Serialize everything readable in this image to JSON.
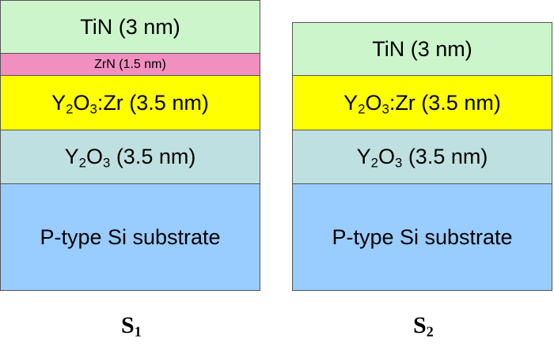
{
  "colors": {
    "tin": "#ccf5cc",
    "zrn": "#f08fc0",
    "y2o3_zr": "#ffff00",
    "y2o3": "#bfe0e0",
    "substrate": "#99ccff"
  },
  "s1": {
    "caption": {
      "letter": "S",
      "index": "1"
    },
    "layers": {
      "tin": "TiN (3 nm)",
      "zrn": "ZrN (1.5 nm)",
      "y2o3_zr": {
        "y": "Y",
        "n1": "2",
        "o": "O",
        "n2": "3",
        "rest": ":Zr (3.5 nm)"
      },
      "y2o3": {
        "y": "Y",
        "n1": "2",
        "o": "O",
        "n2": "3",
        "rest": " (3.5 nm)"
      },
      "substrate": "P-type Si substrate"
    }
  },
  "s2": {
    "caption": {
      "letter": "S",
      "index": "2"
    },
    "layers": {
      "tin": "TiN (3 nm)",
      "y2o3_zr": {
        "y": "Y",
        "n1": "2",
        "o": "O",
        "n2": "3",
        "rest": ":Zr (3.5 nm)"
      },
      "y2o3": {
        "y": "Y",
        "n1": "2",
        "o": "O",
        "n2": "3",
        "rest": " (3.5 nm)"
      },
      "substrate": "P-type Si substrate"
    }
  }
}
